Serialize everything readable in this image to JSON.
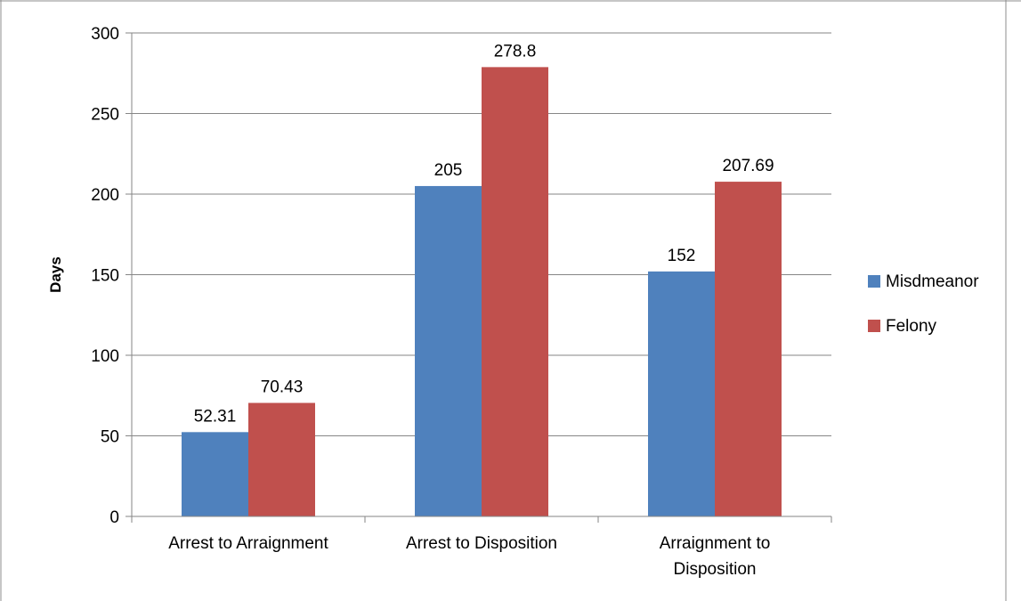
{
  "colors": {
    "misdemeanor": "#4f81bd",
    "felony": "#c0504d",
    "grid": "#868686",
    "frame": "#8c8c8c"
  },
  "chart_data": {
    "type": "bar",
    "title": "",
    "xlabel": "",
    "ylabel": "Days",
    "ylim": [
      0,
      300
    ],
    "yticks": [
      0,
      50,
      100,
      150,
      200,
      250,
      300
    ],
    "grid": true,
    "legend": "right",
    "categories": [
      [
        "Arrest to Arraignment"
      ],
      [
        "Arrest to Disposition"
      ],
      [
        "Arraignment to",
        "Disposition"
      ]
    ],
    "series": [
      {
        "name": "Misdmeanor",
        "values": [
          52.31,
          205,
          152
        ],
        "labels": [
          "52.31",
          "205",
          "152"
        ]
      },
      {
        "name": "Felony",
        "values": [
          70.43,
          278.8,
          207.69
        ],
        "labels": [
          "70.43",
          "278.8",
          "207.69"
        ]
      }
    ]
  }
}
